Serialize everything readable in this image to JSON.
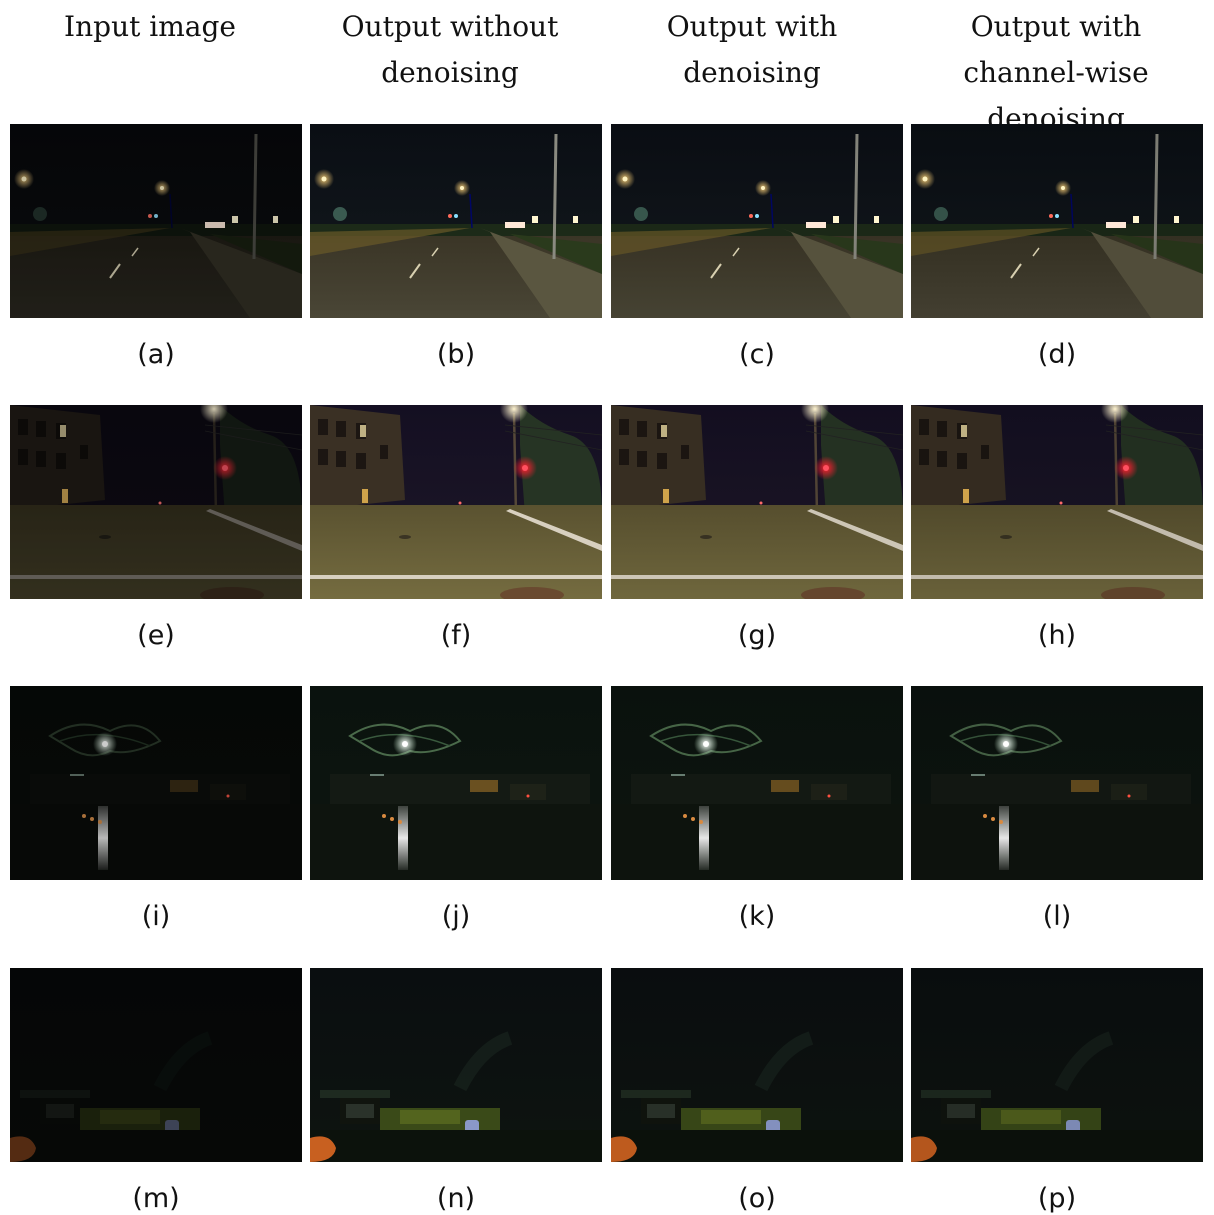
{
  "columns": [
    {
      "lines": [
        "Input image"
      ]
    },
    {
      "lines": [
        "Output without",
        "denoising"
      ]
    },
    {
      "lines": [
        "Output with",
        "denoising"
      ]
    },
    {
      "lines": [
        "Output with",
        "channel-wise denoising"
      ]
    }
  ],
  "rows": [
    {
      "scene": "street-streetlights",
      "captions": [
        "(a)",
        "(b)",
        "(c)",
        "(d)"
      ]
    },
    {
      "scene": "intersection-red-light",
      "captions": [
        "(e)",
        "(f)",
        "(g)",
        "(h)"
      ]
    },
    {
      "scene": "wet-road-green-light",
      "captions": [
        "(i)",
        "(j)",
        "(k)",
        "(l)"
      ]
    },
    {
      "scene": "dark-driveway-orange-car",
      "captions": [
        "(m)",
        "(n)",
        "(o)",
        "(p)"
      ]
    }
  ]
}
